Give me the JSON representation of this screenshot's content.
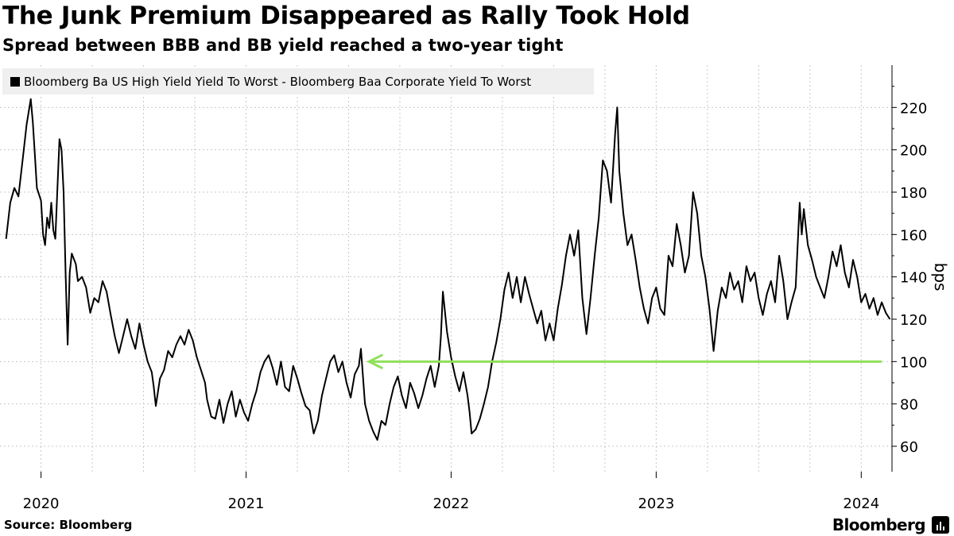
{
  "chart_data": {
    "type": "line",
    "title": "The Junk Premium Disappeared as Rally Took Hold",
    "subtitle": "Spread between BBB and BB yield reached a two-year tight",
    "ylabel": "bps",
    "ylim": [
      48,
      240
    ],
    "yticks": [
      60,
      80,
      100,
      120,
      140,
      160,
      180,
      200,
      220
    ],
    "xlim": [
      2019.8,
      2024.15
    ],
    "xticks": [
      {
        "label": "2020",
        "x": 2020.0
      },
      {
        "label": "2021",
        "x": 2021.0
      },
      {
        "label": "2022",
        "x": 2022.0
      },
      {
        "label": "2023",
        "x": 2023.0
      },
      {
        "label": "2024",
        "x": 2024.0
      }
    ],
    "series": [
      {
        "name": "Bloomberg Ba US High Yield Yield To Worst - Bloomberg Baa Corporate Yield To Worst",
        "color": "#000000",
        "points": [
          [
            2019.83,
            158
          ],
          [
            2019.85,
            175
          ],
          [
            2019.87,
            182
          ],
          [
            2019.89,
            178
          ],
          [
            2019.91,
            195
          ],
          [
            2019.93,
            212
          ],
          [
            2019.95,
            224
          ],
          [
            2019.96,
            213
          ],
          [
            2019.97,
            198
          ],
          [
            2019.98,
            182
          ],
          [
            2020.0,
            176
          ],
          [
            2020.01,
            160
          ],
          [
            2020.02,
            155
          ],
          [
            2020.03,
            168
          ],
          [
            2020.04,
            163
          ],
          [
            2020.05,
            175
          ],
          [
            2020.06,
            162
          ],
          [
            2020.07,
            158
          ],
          [
            2020.09,
            205
          ],
          [
            2020.1,
            200
          ],
          [
            2020.11,
            180
          ],
          [
            2020.12,
            142
          ],
          [
            2020.13,
            108
          ],
          [
            2020.14,
            142
          ],
          [
            2020.15,
            151
          ],
          [
            2020.17,
            146
          ],
          [
            2020.18,
            138
          ],
          [
            2020.2,
            140
          ],
          [
            2020.22,
            135
          ],
          [
            2020.24,
            123
          ],
          [
            2020.26,
            130
          ],
          [
            2020.28,
            128
          ],
          [
            2020.3,
            138
          ],
          [
            2020.32,
            133
          ],
          [
            2020.34,
            122
          ],
          [
            2020.36,
            112
          ],
          [
            2020.38,
            104
          ],
          [
            2020.4,
            112
          ],
          [
            2020.42,
            120
          ],
          [
            2020.44,
            112
          ],
          [
            2020.46,
            106
          ],
          [
            2020.48,
            118
          ],
          [
            2020.5,
            108
          ],
          [
            2020.52,
            100
          ],
          [
            2020.54,
            95
          ],
          [
            2020.55,
            88
          ],
          [
            2020.56,
            79
          ],
          [
            2020.58,
            92
          ],
          [
            2020.6,
            96
          ],
          [
            2020.62,
            105
          ],
          [
            2020.64,
            102
          ],
          [
            2020.66,
            108
          ],
          [
            2020.68,
            112
          ],
          [
            2020.7,
            108
          ],
          [
            2020.72,
            115
          ],
          [
            2020.74,
            110
          ],
          [
            2020.76,
            102
          ],
          [
            2020.78,
            96
          ],
          [
            2020.8,
            90
          ],
          [
            2020.81,
            82
          ],
          [
            2020.83,
            74
          ],
          [
            2020.85,
            73
          ],
          [
            2020.87,
            82
          ],
          [
            2020.89,
            71
          ],
          [
            2020.91,
            80
          ],
          [
            2020.93,
            86
          ],
          [
            2020.95,
            74
          ],
          [
            2020.97,
            82
          ],
          [
            2020.99,
            76
          ],
          [
            2021.01,
            72
          ],
          [
            2021.03,
            80
          ],
          [
            2021.05,
            86
          ],
          [
            2021.07,
            95
          ],
          [
            2021.09,
            100
          ],
          [
            2021.11,
            103
          ],
          [
            2021.13,
            97
          ],
          [
            2021.15,
            89
          ],
          [
            2021.17,
            100
          ],
          [
            2021.19,
            88
          ],
          [
            2021.21,
            86
          ],
          [
            2021.23,
            98
          ],
          [
            2021.25,
            92
          ],
          [
            2021.27,
            85
          ],
          [
            2021.29,
            79
          ],
          [
            2021.31,
            77
          ],
          [
            2021.33,
            66
          ],
          [
            2021.35,
            72
          ],
          [
            2021.37,
            84
          ],
          [
            2021.39,
            92
          ],
          [
            2021.41,
            100
          ],
          [
            2021.43,
            103
          ],
          [
            2021.45,
            95
          ],
          [
            2021.47,
            100
          ],
          [
            2021.49,
            90
          ],
          [
            2021.51,
            83
          ],
          [
            2021.53,
            94
          ],
          [
            2021.55,
            98
          ],
          [
            2021.56,
            106
          ],
          [
            2021.58,
            80
          ],
          [
            2021.6,
            72
          ],
          [
            2021.62,
            67
          ],
          [
            2021.64,
            63
          ],
          [
            2021.66,
            72
          ],
          [
            2021.68,
            70
          ],
          [
            2021.7,
            80
          ],
          [
            2021.72,
            88
          ],
          [
            2021.74,
            93
          ],
          [
            2021.76,
            84
          ],
          [
            2021.78,
            78
          ],
          [
            2021.8,
            90
          ],
          [
            2021.82,
            85
          ],
          [
            2021.84,
            78
          ],
          [
            2021.86,
            84
          ],
          [
            2021.88,
            92
          ],
          [
            2021.9,
            98
          ],
          [
            2021.92,
            88
          ],
          [
            2021.94,
            98
          ],
          [
            2021.95,
            112
          ],
          [
            2021.96,
            133
          ],
          [
            2021.98,
            114
          ],
          [
            2022.0,
            102
          ],
          [
            2022.02,
            93
          ],
          [
            2022.04,
            86
          ],
          [
            2022.06,
            95
          ],
          [
            2022.08,
            84
          ],
          [
            2022.09,
            76
          ],
          [
            2022.1,
            66
          ],
          [
            2022.12,
            68
          ],
          [
            2022.14,
            73
          ],
          [
            2022.16,
            80
          ],
          [
            2022.18,
            88
          ],
          [
            2022.2,
            100
          ],
          [
            2022.22,
            109
          ],
          [
            2022.24,
            120
          ],
          [
            2022.26,
            134
          ],
          [
            2022.28,
            142
          ],
          [
            2022.3,
            130
          ],
          [
            2022.32,
            140
          ],
          [
            2022.34,
            128
          ],
          [
            2022.36,
            140
          ],
          [
            2022.38,
            132
          ],
          [
            2022.4,
            125
          ],
          [
            2022.42,
            118
          ],
          [
            2022.44,
            124
          ],
          [
            2022.46,
            110
          ],
          [
            2022.48,
            118
          ],
          [
            2022.5,
            110
          ],
          [
            2022.52,
            125
          ],
          [
            2022.54,
            136
          ],
          [
            2022.56,
            150
          ],
          [
            2022.58,
            160
          ],
          [
            2022.6,
            150
          ],
          [
            2022.62,
            162
          ],
          [
            2022.64,
            130
          ],
          [
            2022.66,
            113
          ],
          [
            2022.68,
            130
          ],
          [
            2022.7,
            150
          ],
          [
            2022.72,
            168
          ],
          [
            2022.74,
            195
          ],
          [
            2022.76,
            190
          ],
          [
            2022.78,
            175
          ],
          [
            2022.8,
            208
          ],
          [
            2022.81,
            220
          ],
          [
            2022.82,
            190
          ],
          [
            2022.84,
            170
          ],
          [
            2022.86,
            155
          ],
          [
            2022.88,
            160
          ],
          [
            2022.9,
            148
          ],
          [
            2022.92,
            135
          ],
          [
            2022.94,
            125
          ],
          [
            2022.96,
            118
          ],
          [
            2022.98,
            130
          ],
          [
            2023.0,
            135
          ],
          [
            2023.02,
            125
          ],
          [
            2023.04,
            122
          ],
          [
            2023.06,
            150
          ],
          [
            2023.08,
            145
          ],
          [
            2023.1,
            165
          ],
          [
            2023.12,
            155
          ],
          [
            2023.14,
            142
          ],
          [
            2023.16,
            150
          ],
          [
            2023.18,
            180
          ],
          [
            2023.2,
            170
          ],
          [
            2023.22,
            150
          ],
          [
            2023.24,
            140
          ],
          [
            2023.26,
            125
          ],
          [
            2023.28,
            105
          ],
          [
            2023.3,
            124
          ],
          [
            2023.32,
            135
          ],
          [
            2023.34,
            130
          ],
          [
            2023.36,
            142
          ],
          [
            2023.38,
            134
          ],
          [
            2023.4,
            138
          ],
          [
            2023.42,
            128
          ],
          [
            2023.44,
            145
          ],
          [
            2023.46,
            138
          ],
          [
            2023.48,
            142
          ],
          [
            2023.5,
            130
          ],
          [
            2023.52,
            122
          ],
          [
            2023.54,
            132
          ],
          [
            2023.56,
            138
          ],
          [
            2023.58,
            128
          ],
          [
            2023.6,
            150
          ],
          [
            2023.62,
            138
          ],
          [
            2023.64,
            120
          ],
          [
            2023.66,
            128
          ],
          [
            2023.68,
            135
          ],
          [
            2023.7,
            175
          ],
          [
            2023.71,
            160
          ],
          [
            2023.72,
            172
          ],
          [
            2023.74,
            155
          ],
          [
            2023.76,
            148
          ],
          [
            2023.78,
            140
          ],
          [
            2023.8,
            135
          ],
          [
            2023.82,
            130
          ],
          [
            2023.84,
            140
          ],
          [
            2023.86,
            152
          ],
          [
            2023.88,
            145
          ],
          [
            2023.9,
            155
          ],
          [
            2023.92,
            142
          ],
          [
            2023.94,
            135
          ],
          [
            2023.96,
            148
          ],
          [
            2023.98,
            140
          ],
          [
            2024.0,
            128
          ],
          [
            2024.02,
            132
          ],
          [
            2024.04,
            125
          ],
          [
            2024.06,
            130
          ],
          [
            2024.08,
            122
          ],
          [
            2024.1,
            128
          ],
          [
            2024.12,
            123
          ],
          [
            2024.14,
            120
          ]
        ]
      }
    ],
    "reference_arrow": {
      "y": 100,
      "x_start": 2021.6,
      "x_end": 2024.1,
      "color": "#8ee05a"
    },
    "legend": "top-left",
    "grid": true
  },
  "source": "Source: Bloomberg",
  "brand": "Bloomberg"
}
